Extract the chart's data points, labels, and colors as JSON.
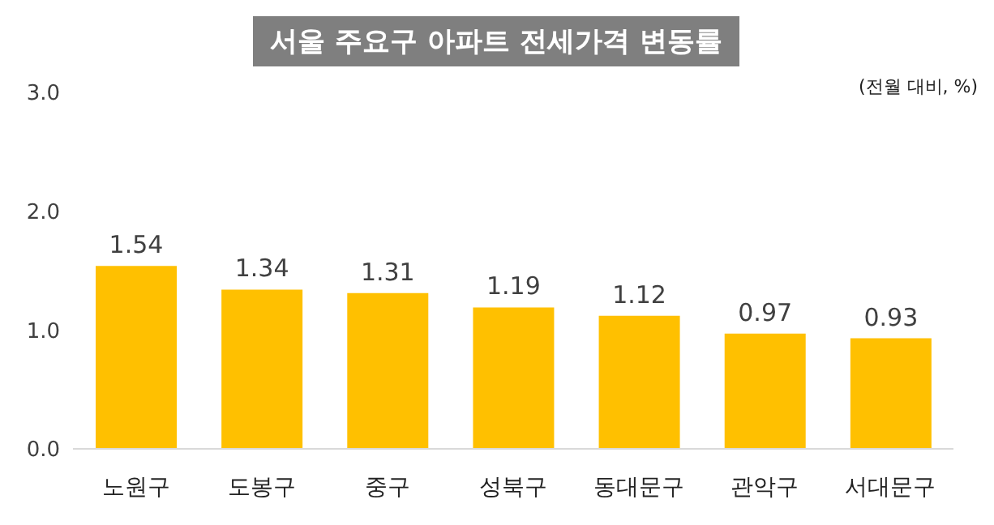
{
  "chart_data": {
    "type": "bar",
    "title": "서울 주요구 아파트 전세가격 변동률",
    "subtitle": "(전월 대비, %)",
    "categories": [
      "노원구",
      "도봉구",
      "중구",
      "성북구",
      "동대문구",
      "관악구",
      "서대문구"
    ],
    "values": [
      1.54,
      1.34,
      1.31,
      1.19,
      1.12,
      0.97,
      0.93
    ],
    "color": "#ffc000",
    "ylim": [
      0,
      3
    ],
    "yticks": [
      {
        "value": 0,
        "label": "0.0"
      },
      {
        "value": 1,
        "label": "1.0"
      },
      {
        "value": 2,
        "label": "2.0"
      },
      {
        "value": 3,
        "label": "3.0"
      }
    ],
    "data_labels": true,
    "grid": false,
    "legend": false
  }
}
